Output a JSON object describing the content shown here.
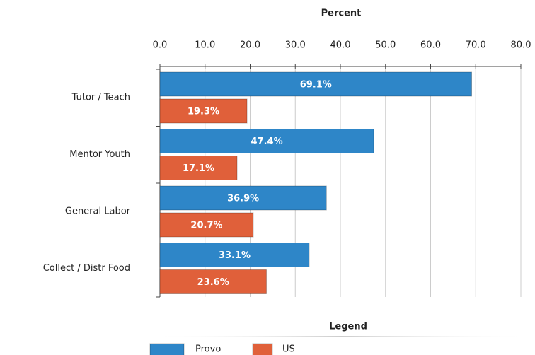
{
  "chart_data": {
    "type": "barh",
    "x_label": "Percent",
    "categories": [
      "Tutor / Teach",
      "Mentor Youth",
      "General Labor",
      "Collect / Distr Food"
    ],
    "series": [
      {
        "name": "Provo",
        "color": "#2e86c8",
        "values": [
          69.1,
          47.4,
          36.9,
          33.1
        ],
        "value_labels": [
          "69.1%",
          "47.4%",
          "36.9%",
          "33.1%"
        ]
      },
      {
        "name": "US",
        "color": "#e0603a",
        "values": [
          19.3,
          17.1,
          20.7,
          23.6
        ],
        "value_labels": [
          "19.3%",
          "17.1%",
          "20.7%",
          "23.6%"
        ]
      }
    ],
    "xlim": [
      0,
      80
    ],
    "xticks": [
      {
        "value": 0,
        "label": "0.0"
      },
      {
        "value": 10,
        "label": "10.0"
      },
      {
        "value": 20,
        "label": "20.0"
      },
      {
        "value": 30,
        "label": "30.0"
      },
      {
        "value": 40,
        "label": "40.0"
      },
      {
        "value": 50,
        "label": "50.0"
      },
      {
        "value": 60,
        "label": "60.0"
      },
      {
        "value": 70,
        "label": "70.0"
      },
      {
        "value": 80,
        "label": "80.0"
      }
    ],
    "grid": true,
    "legend_title": "Legend",
    "legend": "bottom"
  }
}
